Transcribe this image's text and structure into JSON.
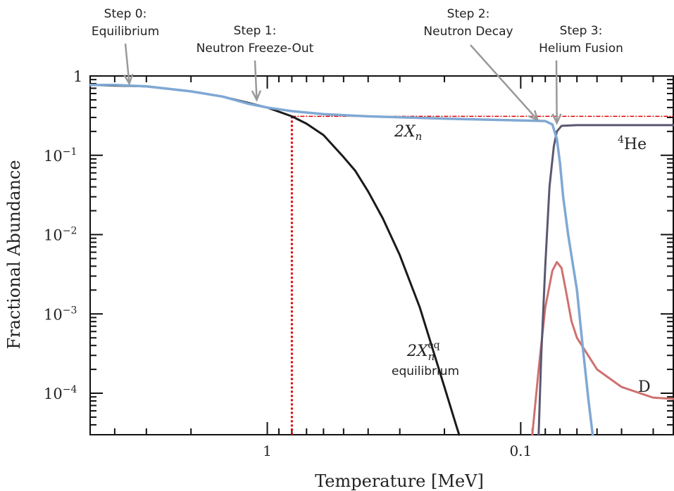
{
  "chart_data": {
    "type": "line",
    "title": "",
    "xlabel": "Temperature [MeV]",
    "ylabel": "Fractional Abundance",
    "x_axis": {
      "scale": "log",
      "reversed": true,
      "xlim": [
        5.0,
        0.025
      ],
      "ticks": [
        1,
        0.1
      ],
      "tick_labels": [
        "1",
        "0.1"
      ]
    },
    "y_axis": {
      "scale": "log",
      "ylim": [
        3e-05,
        1.0
      ],
      "ticks": [
        1,
        0.1,
        0.01,
        0.001,
        0.0001
      ],
      "tick_base": [
        "1",
        "10",
        "10",
        "10",
        "10"
      ],
      "tick_exp": [
        "",
        "−1",
        "−2",
        "−3",
        "−4"
      ]
    },
    "grid": false,
    "series": [
      {
        "name": "2X_n",
        "color": "#7fa8d4",
        "points": [
          [
            5.0,
            0.77
          ],
          [
            4.0,
            0.77
          ],
          [
            3.0,
            0.74
          ],
          [
            2.0,
            0.64
          ],
          [
            1.5,
            0.55
          ],
          [
            1.2,
            0.45
          ],
          [
            1.0,
            0.4
          ],
          [
            0.8,
            0.36
          ],
          [
            0.6,
            0.33
          ],
          [
            0.4,
            0.31
          ],
          [
            0.2,
            0.29
          ],
          [
            0.1,
            0.275
          ],
          [
            0.08,
            0.27
          ],
          [
            0.075,
            0.245
          ],
          [
            0.072,
            0.16
          ],
          [
            0.07,
            0.08
          ],
          [
            0.068,
            0.03
          ],
          [
            0.065,
            0.01
          ],
          [
            0.06,
            0.002
          ],
          [
            0.057,
            0.0004
          ],
          [
            0.054,
            8e-05
          ],
          [
            0.052,
            3e-05
          ]
        ]
      },
      {
        "name": "2X_n^eq",
        "color": "#1a1a1a",
        "points": [
          [
            5.0,
            0.77
          ],
          [
            3.0,
            0.74
          ],
          [
            2.0,
            0.64
          ],
          [
            1.5,
            0.55
          ],
          [
            1.0,
            0.4
          ],
          [
            0.8,
            0.31
          ],
          [
            0.7,
            0.25
          ],
          [
            0.6,
            0.18
          ],
          [
            0.5,
            0.095
          ],
          [
            0.45,
            0.064
          ],
          [
            0.4,
            0.035
          ],
          [
            0.35,
            0.016
          ],
          [
            0.3,
            0.0055
          ],
          [
            0.25,
            0.0012
          ],
          [
            0.2,
            0.00012
          ],
          [
            0.18,
            4e-05
          ],
          [
            0.175,
            3e-05
          ]
        ]
      },
      {
        "name": "4He",
        "color": "#5a5870",
        "points": [
          [
            0.085,
            3e-05
          ],
          [
            0.083,
            0.0003
          ],
          [
            0.08,
            0.004
          ],
          [
            0.077,
            0.04
          ],
          [
            0.074,
            0.13
          ],
          [
            0.072,
            0.2
          ],
          [
            0.069,
            0.235
          ],
          [
            0.06,
            0.24
          ],
          [
            0.04,
            0.24
          ],
          [
            0.025,
            0.24
          ]
        ]
      },
      {
        "name": "D",
        "color": "#d07070",
        "points": [
          [
            0.09,
            3e-05
          ],
          [
            0.085,
            0.0002
          ],
          [
            0.08,
            0.0012
          ],
          [
            0.075,
            0.0035
          ],
          [
            0.072,
            0.0045
          ],
          [
            0.069,
            0.0038
          ],
          [
            0.066,
            0.0018
          ],
          [
            0.063,
            0.0008
          ],
          [
            0.06,
            0.0005
          ],
          [
            0.05,
            0.0002
          ],
          [
            0.04,
            0.00012
          ],
          [
            0.03,
            8.8e-05
          ],
          [
            0.025,
            8.5e-05
          ]
        ]
      }
    ],
    "reference_lines": [
      {
        "kind": "vertical",
        "x": 0.8,
        "y_from": 3e-05,
        "y_to": 0.31,
        "color": "#e00000",
        "style": "dotted"
      },
      {
        "kind": "horizontal",
        "y": 0.31,
        "x_from": 0.8,
        "x_to": 0.025,
        "color": "#e00000",
        "style": "dash-dot"
      }
    ],
    "curve_labels": {
      "xn": {
        "base": "2X",
        "sub": "n"
      },
      "xn_eq": {
        "base": "2X",
        "sup": "eq",
        "sub": "n",
        "note": "equilibrium"
      },
      "he": {
        "sup": "4",
        "base": "He"
      },
      "d": "D"
    },
    "annotations": [
      {
        "line1": "Step 0:",
        "line2": "Equilibrium",
        "x": 3.5,
        "y": 0.77
      },
      {
        "line1": "Step 1:",
        "line2": "Neutron Freeze-Out",
        "x": 1.1,
        "y": 0.48
      },
      {
        "line1": "Step 2:",
        "line2": "Neutron Decay",
        "x": 0.085,
        "y": 0.27
      },
      {
        "line1": "Step 3:",
        "line2": "Helium Fusion",
        "x": 0.072,
        "y": 0.245
      }
    ]
  }
}
